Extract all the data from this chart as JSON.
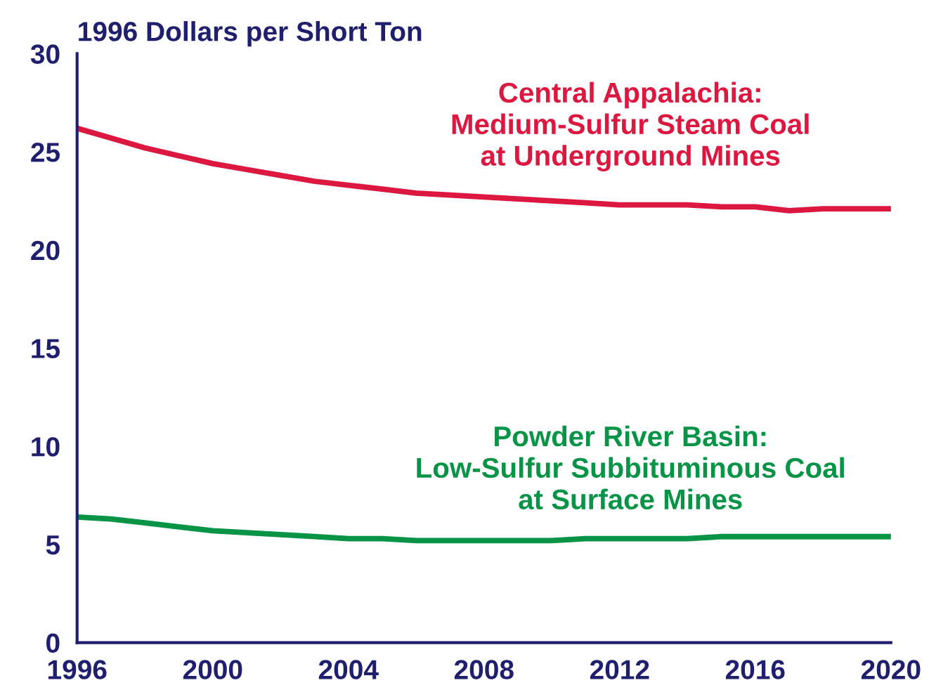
{
  "chart_data": {
    "type": "line",
    "ylabel": "1996 Dollars per Short Ton",
    "x": [
      1996,
      1997,
      1998,
      1999,
      2000,
      2001,
      2002,
      2003,
      2004,
      2005,
      2006,
      2007,
      2008,
      2009,
      2010,
      2011,
      2012,
      2013,
      2014,
      2015,
      2016,
      2017,
      2018,
      2019,
      2020
    ],
    "series": [
      {
        "name": "Central Appalachia:\nMedium-Sulfur Steam Coal\nat Underground Mines",
        "color": "#dc1740",
        "values": [
          26.2,
          25.7,
          25.2,
          24.8,
          24.4,
          24.1,
          23.8,
          23.5,
          23.3,
          23.1,
          22.9,
          22.8,
          22.7,
          22.6,
          22.5,
          22.4,
          22.3,
          22.3,
          22.3,
          22.2,
          22.2,
          22.0,
          22.1,
          22.1,
          22.1
        ]
      },
      {
        "name": "Powder River Basin:\nLow-Sulfur Subbituminous Coal\nat Surface Mines",
        "color": "#079447",
        "values": [
          6.4,
          6.3,
          6.1,
          5.9,
          5.7,
          5.6,
          5.5,
          5.4,
          5.3,
          5.3,
          5.2,
          5.2,
          5.2,
          5.2,
          5.2,
          5.3,
          5.3,
          5.3,
          5.3,
          5.4,
          5.4,
          5.4,
          5.4,
          5.4,
          5.4
        ]
      }
    ],
    "xlim": [
      1996,
      2020
    ],
    "xticks": [
      1996,
      2000,
      2004,
      2008,
      2012,
      2016,
      2020
    ],
    "ylim": [
      0,
      30
    ],
    "yticks": [
      0,
      5,
      10,
      15,
      20,
      25,
      30
    ],
    "grid": false,
    "legend": false,
    "marker": "none",
    "line_style": "solid"
  }
}
